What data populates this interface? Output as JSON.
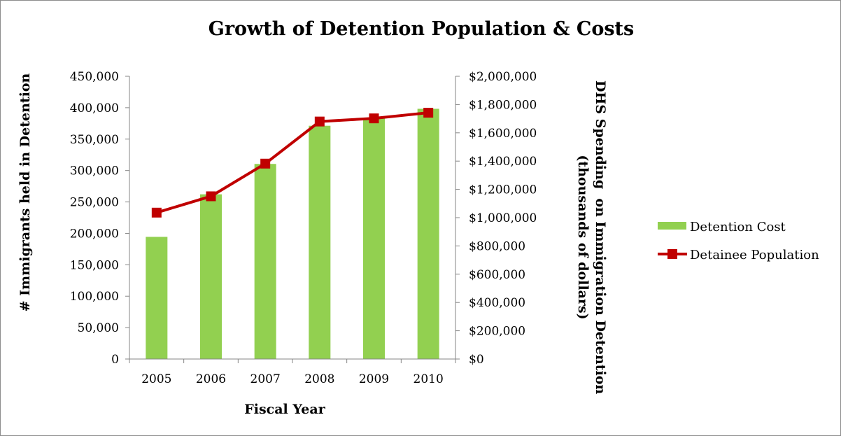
{
  "chart_data": {
    "type": "bar+line",
    "title": "Growth of Detention Population & Costs",
    "xlabel": "Fiscal Year",
    "ylabel_left": "# Immigrants held in Detention",
    "ylabel_right_lines": [
      "DHS Spending  on Immigration Detention",
      "(thousands of dollars)"
    ],
    "categories": [
      "2005",
      "2006",
      "2007",
      "2008",
      "2009",
      "2010"
    ],
    "series": [
      {
        "name": "Detention Cost",
        "type": "bar",
        "axis": "right",
        "color": "#92d050",
        "values": [
          864000,
          1165000,
          1380000,
          1650000,
          1705000,
          1770000
        ]
      },
      {
        "name": "Detainee Population",
        "type": "line",
        "axis": "left",
        "color": "#c00000",
        "values": [
          233000,
          259000,
          311000,
          378000,
          383000,
          392000
        ]
      }
    ],
    "y_left": {
      "range": [
        0,
        450000
      ],
      "ticks": [
        0,
        50000,
        100000,
        150000,
        200000,
        250000,
        300000,
        350000,
        400000,
        450000
      ],
      "tick_labels": [
        "0",
        "50,000",
        "100,000",
        "150,000",
        "200,000",
        "250,000",
        "300,000",
        "350,000",
        "400,000",
        "450,000"
      ]
    },
    "y_right": {
      "range": [
        0,
        2000000
      ],
      "ticks": [
        0,
        200000,
        400000,
        600000,
        800000,
        1000000,
        1200000,
        1400000,
        1600000,
        1800000,
        2000000
      ],
      "tick_labels": [
        "$0",
        "$200,000",
        "$400,000",
        "$600,000",
        "$800,000",
        "$1,000,000",
        "$1,200,000",
        "$1,400,000",
        "$1,600,000",
        "$1,800,000",
        "$2,000,000"
      ]
    },
    "grid": false,
    "legend_position": "right"
  }
}
